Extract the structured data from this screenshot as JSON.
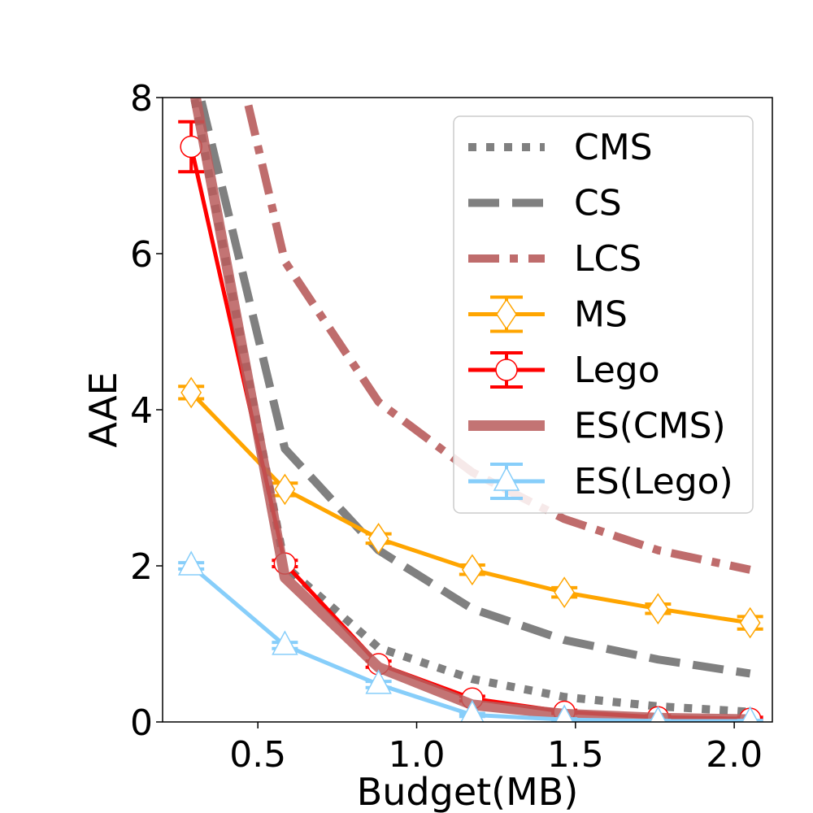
{
  "chart_data": {
    "type": "line",
    "xlabel": "Budget(MB)",
    "ylabel": "AAE",
    "xlim": [
      0.2,
      2.12
    ],
    "ylim": [
      0,
      8
    ],
    "xticks": [
      "0.5",
      "1.0",
      "1.5",
      "2.0"
    ],
    "yticks": [
      "0",
      "2",
      "4",
      "6",
      "8"
    ],
    "grid": false,
    "legend_position": "top-right",
    "x": [
      0.29,
      0.585,
      0.88,
      1.175,
      1.465,
      1.76,
      2.05
    ],
    "series": [
      {
        "name": "CMS",
        "style": "dotted",
        "color": "#808080",
        "values": [
          8.2,
          2.0,
          0.95,
          0.55,
          0.32,
          0.2,
          0.13
        ],
        "marker": "none"
      },
      {
        "name": "CS",
        "style": "dashed",
        "color": "#808080",
        "values": [
          8.5,
          3.5,
          2.2,
          1.45,
          1.05,
          0.8,
          0.62
        ],
        "marker": "none"
      },
      {
        "name": "LCS",
        "style": "dashdot",
        "color": "#b85c5c",
        "x": [
          0.47,
          0.585,
          0.88,
          1.175,
          1.465,
          1.76,
          2.05
        ],
        "values": [
          7.9,
          5.9,
          4.1,
          3.2,
          2.6,
          2.2,
          1.95
        ],
        "marker": "none"
      },
      {
        "name": "MS",
        "style": "solid",
        "color": "#ffa500",
        "values": [
          4.22,
          2.98,
          2.35,
          1.95,
          1.66,
          1.45,
          1.27
        ],
        "errors": [
          0.08,
          0.08,
          0.06,
          0.06,
          0.06,
          0.06,
          0.08
        ],
        "marker": "diamond"
      },
      {
        "name": "Lego",
        "style": "solid",
        "color": "#ff0000",
        "values": [
          7.37,
          2.03,
          0.74,
          0.3,
          0.13,
          0.06,
          0.04
        ],
        "errors": [
          0.32,
          0.04,
          0.04,
          0.03,
          0.02,
          0.02,
          0.02
        ],
        "marker": "circle"
      },
      {
        "name": "ES(CMS)",
        "style": "solid-thick",
        "color": "#b85c5c",
        "values": [
          8.3,
          1.85,
          0.7,
          0.22,
          0.1,
          0.05,
          0.03
        ],
        "marker": "none"
      },
      {
        "name": "ES(Lego)",
        "style": "solid",
        "color": "#87cefa",
        "values": [
          2.0,
          0.98,
          0.48,
          0.09,
          0.03,
          0.01,
          0.01
        ],
        "errors": [
          0.04,
          0.04,
          0.04,
          0.02,
          0.01,
          0.01,
          0.01
        ],
        "marker": "triangle"
      }
    ]
  }
}
